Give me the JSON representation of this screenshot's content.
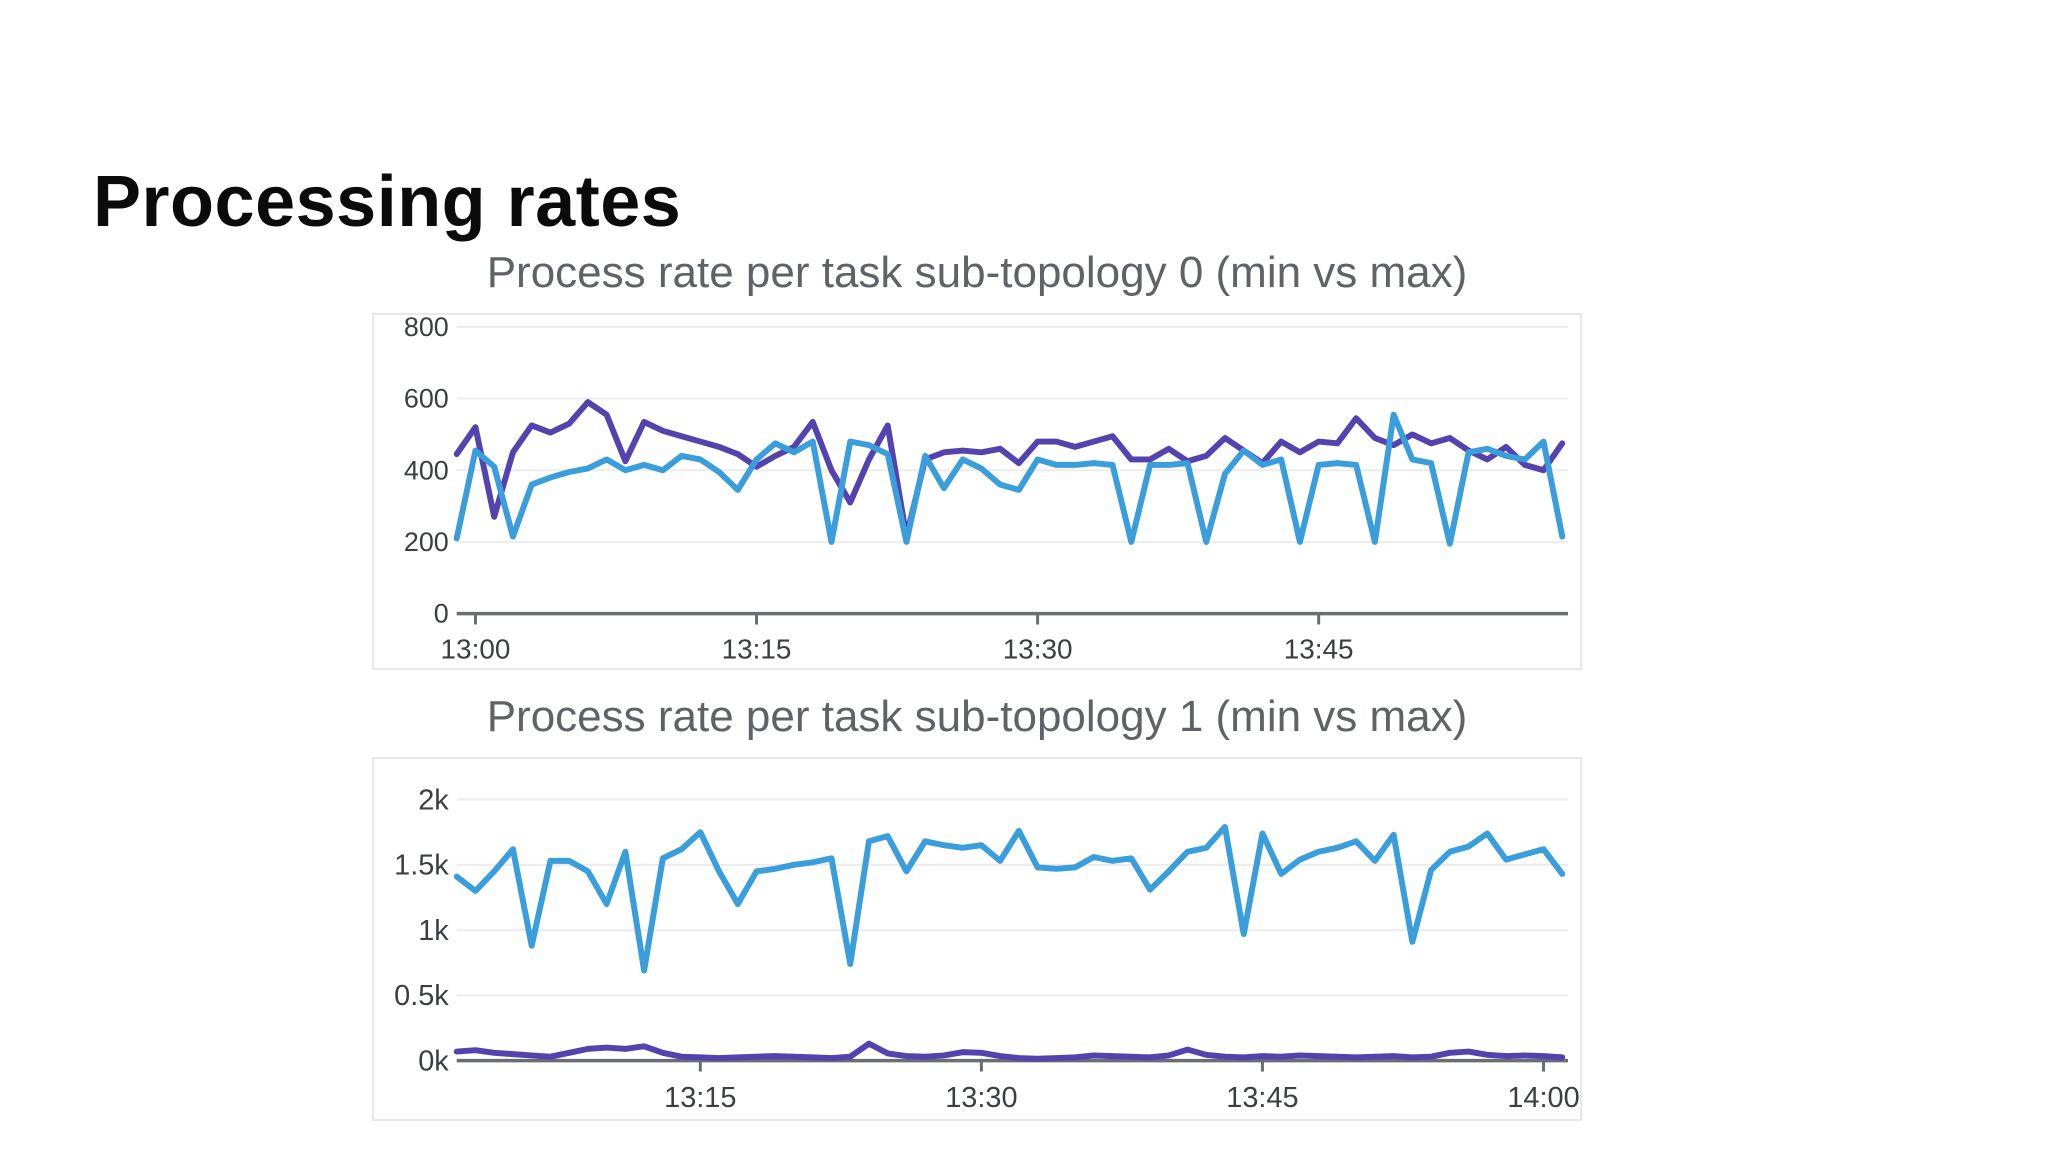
{
  "page": {
    "title": "Processing rates"
  },
  "colors": {
    "blue": "#3b9edc",
    "purple": "#5443ae",
    "grid": "#ececec",
    "axis": "#6a6d71",
    "tick_label": "#3b3e42",
    "title_gray": "#5f6368",
    "page_title": "#0b0b0b",
    "card_border": "#e7e8ea",
    "background": "#ffffff"
  },
  "chart_data": [
    {
      "type": "line",
      "title": "Process rate per task sub-topology 0 (min vs max)",
      "start_time": "12:59",
      "end_time": "13:58",
      "interval_minutes": 1,
      "y_max": 800,
      "ylim": [
        0,
        800
      ],
      "grid": "horizontal",
      "legend": "none",
      "y_gridlines": [
        {
          "label": "800",
          "value": 800
        },
        {
          "label": "600",
          "value": 600
        },
        {
          "label": "400",
          "value": 400
        },
        {
          "label": "200",
          "value": 200
        },
        {
          "label": "0",
          "value": 0
        }
      ],
      "x_ticks": [
        {
          "label": "13:00",
          "min": 1
        },
        {
          "label": "13:15",
          "min": 16
        },
        {
          "label": "13:30",
          "min": 31
        },
        {
          "label": "13:45",
          "min": 46
        }
      ],
      "series": [
        {
          "name": "max",
          "color": "#5443ae",
          "values": [
            445,
            520,
            270,
            450,
            525,
            505,
            530,
            590,
            555,
            425,
            535,
            510,
            495,
            480,
            465,
            445,
            410,
            440,
            465,
            535,
            400,
            310,
            430,
            525,
            215,
            430,
            450,
            455,
            450,
            460,
            420,
            480,
            480,
            465,
            480,
            495,
            430,
            430,
            460,
            425,
            440,
            490,
            455,
            420,
            480,
            450,
            480,
            475,
            545,
            490,
            470,
            500,
            475,
            490,
            455,
            430,
            465,
            415,
            400,
            475
          ]
        },
        {
          "name": "min",
          "color": "#3b9edc",
          "values": [
            210,
            455,
            410,
            215,
            360,
            380,
            395,
            405,
            430,
            400,
            415,
            400,
            440,
            430,
            395,
            345,
            430,
            475,
            450,
            480,
            200,
            480,
            470,
            445,
            200,
            440,
            350,
            430,
            405,
            360,
            345,
            430,
            415,
            415,
            420,
            415,
            200,
            415,
            415,
            420,
            200,
            390,
            455,
            415,
            430,
            200,
            415,
            420,
            415,
            200,
            555,
            430,
            420,
            195,
            450,
            460,
            440,
            430,
            480,
            215
          ]
        }
      ]
    },
    {
      "type": "line",
      "title": "Process rate per task sub-topology 1 (min vs max)",
      "start_time": "13:02",
      "end_time": "14:01",
      "interval_minutes": 1,
      "y_max": 2000,
      "ylim": [
        0,
        2000
      ],
      "grid": "horizontal",
      "legend": "none",
      "y_gridlines": [
        {
          "label": "2k",
          "value": 2000
        },
        {
          "label": "1.5k",
          "value": 1500
        },
        {
          "label": "1k",
          "value": 1000
        },
        {
          "label": "0.5k",
          "value": 500
        },
        {
          "label": "0k",
          "value": 0
        }
      ],
      "x_ticks": [
        {
          "label": "13:15",
          "min": 13
        },
        {
          "label": "13:30",
          "min": 28
        },
        {
          "label": "13:45",
          "min": 43
        },
        {
          "label": "14:00",
          "min": 58
        }
      ],
      "series": [
        {
          "name": "min",
          "color": "#5443ae",
          "values": [
            70,
            80,
            60,
            50,
            40,
            30,
            60,
            90,
            100,
            90,
            110,
            60,
            30,
            25,
            20,
            25,
            30,
            35,
            30,
            25,
            20,
            30,
            130,
            55,
            35,
            30,
            40,
            65,
            60,
            35,
            20,
            15,
            20,
            25,
            40,
            35,
            30,
            25,
            40,
            85,
            45,
            30,
            25,
            35,
            30,
            40,
            35,
            30,
            25,
            30,
            35,
            25,
            30,
            60,
            70,
            45,
            35,
            40,
            35,
            25
          ]
        },
        {
          "name": "max",
          "color": "#3b9edc",
          "values": [
            1410,
            1300,
            1450,
            1620,
            880,
            1530,
            1530,
            1450,
            1200,
            1600,
            690,
            1550,
            1620,
            1750,
            1450,
            1200,
            1450,
            1470,
            1500,
            1520,
            1550,
            740,
            1680,
            1720,
            1450,
            1680,
            1650,
            1630,
            1650,
            1530,
            1760,
            1480,
            1470,
            1480,
            1560,
            1530,
            1550,
            1310,
            1450,
            1600,
            1630,
            1790,
            970,
            1740,
            1430,
            1540,
            1600,
            1630,
            1680,
            1530,
            1730,
            910,
            1460,
            1600,
            1640,
            1740,
            1540,
            1580,
            1620,
            1430
          ]
        }
      ]
    }
  ]
}
